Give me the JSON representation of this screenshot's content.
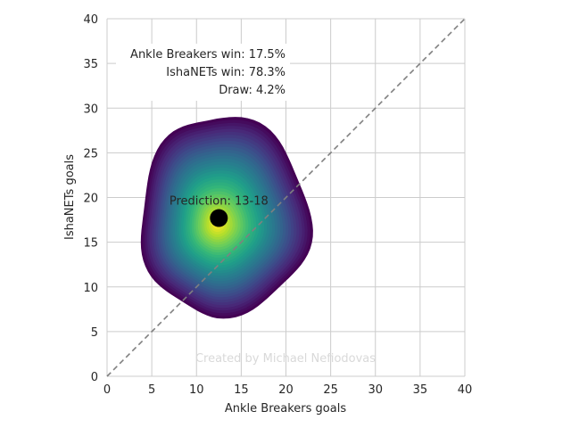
{
  "chart_data": {
    "type": "heatmap",
    "subtype": "2d-density",
    "xlabel": "Ankle Breakers goals",
    "ylabel": "IshaNETs goals",
    "xlim": [
      0,
      40
    ],
    "ylim": [
      0,
      40
    ],
    "xticks": [
      0,
      5,
      10,
      15,
      20,
      25,
      30,
      35,
      40
    ],
    "yticks": [
      0,
      5,
      10,
      15,
      20,
      25,
      30,
      35,
      40
    ],
    "grid": true,
    "colormap": "viridis",
    "colormap_stops": [
      "#440154",
      "#482878",
      "#3e4989",
      "#31688e",
      "#26828e",
      "#1f9e89",
      "#35b779",
      "#6ece58",
      "#b5de2b",
      "#fde725"
    ],
    "density_center": [
      12.3,
      17.0
    ],
    "density_extent_x": [
      3.7,
      22.7
    ],
    "density_extent_y": [
      6.8,
      29.2
    ],
    "diagonal_line": {
      "from": [
        0,
        0
      ],
      "to": [
        40,
        40
      ],
      "color": "#808080",
      "style": "dashed"
    },
    "prediction_point": {
      "x": 12.5,
      "y": 17.7,
      "color": "#000000"
    },
    "prediction_label": "Prediction: 13-18",
    "win_probabilities": [
      "Ankle Breakers win: 17.5%",
      "IshaNETs win: 78.3%",
      "Draw: 4.2%"
    ],
    "watermark": "Created by Michael Nefiodovas"
  }
}
